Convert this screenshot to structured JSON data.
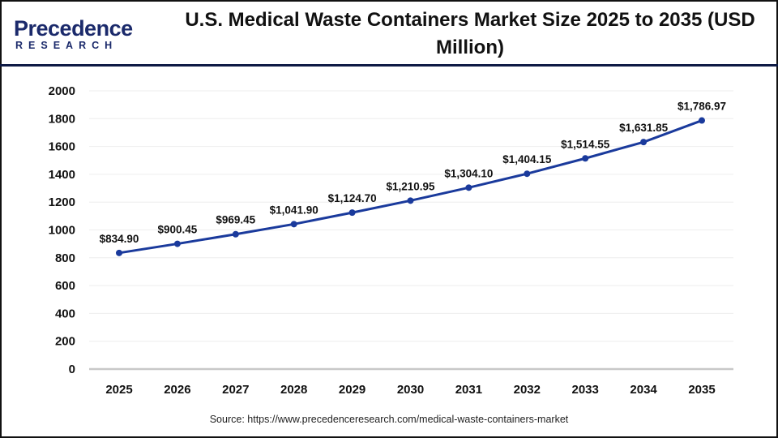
{
  "logo": {
    "line1": "Precedence",
    "line2": "RESEARCH"
  },
  "chart_data": {
    "type": "line",
    "title": "U.S. Medical Waste Containers Market Size 2025 to 2035 (USD Million)",
    "categories": [
      "2025",
      "2026",
      "2027",
      "2028",
      "2029",
      "2030",
      "2031",
      "2032",
      "2033",
      "2034",
      "2035"
    ],
    "series": [
      {
        "values": [
          834.9,
          900.45,
          969.45,
          1041.9,
          1124.7,
          1210.95,
          1304.1,
          1404.15,
          1514.55,
          1631.85,
          1786.97
        ]
      }
    ],
    "data_labels": [
      "$834.90",
      "$900.45",
      "$969.45",
      "$1,041.90",
      "$1,124.70",
      "$1,210.95",
      "$1,304.10",
      "$1,404.15",
      "$1,514.55",
      "$1,631.85",
      "$1,786.97"
    ],
    "yticks": [
      "0",
      "200",
      "400",
      "600",
      "800",
      "1000",
      "1200",
      "1400",
      "1600",
      "1800",
      "2000"
    ],
    "ylim": [
      0,
      2000
    ],
    "xlabel": "",
    "ylabel": "",
    "grid": true,
    "legend": "none",
    "line_color": "#1a3a9c"
  },
  "source": "Source: https://www.precedenceresearch.com/medical-waste-containers-market"
}
